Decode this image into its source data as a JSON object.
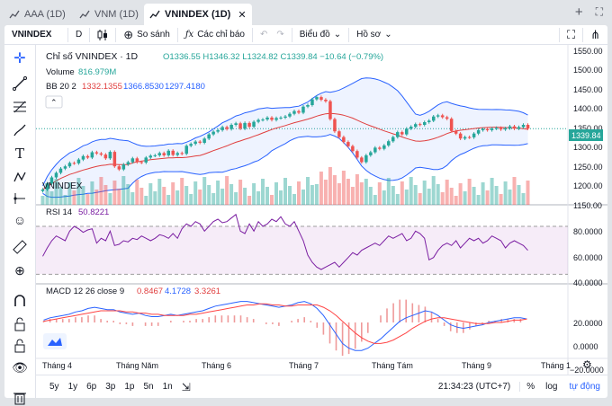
{
  "tabs": [
    {
      "label": "AAA (1D)",
      "active": false
    },
    {
      "label": "VNM (1D)",
      "active": false
    },
    {
      "label": "VNINDEX (1D)",
      "active": true
    }
  ],
  "window_controls": {
    "add": "+",
    "maximize": "⛶"
  },
  "toolbar": {
    "symbol": "VNINDEX",
    "interval": "D",
    "compare_label": "So sánh",
    "indicators_label": "Các chỉ báo",
    "chart_type_label": "Biểu đồ",
    "profile_label": "Hồ sơ"
  },
  "legend": {
    "title": "Chỉ số VNINDEX · 1D",
    "ohlc": "O1336.55 H1346.32 L1324.82 C1339.84 −10.64 (−0.79%)",
    "volume_label": "Volume",
    "volume_value": "816.979M",
    "bb_label": "BB 20 2",
    "bb_v1": "1332.1355",
    "bb_v2": "1366.8530",
    "bb_v3": "1297.4180",
    "rsi_label": "RSI 14",
    "rsi_value": "50.8221",
    "macd_label": "MACD 12 26 close 9",
    "macd_v1": "0.8467",
    "macd_v2": "4.1728",
    "macd_v3": "3.3261"
  },
  "watermark_label": "VNINDEX",
  "price_axis": [
    "1550.00",
    "1500.00",
    "1450.00",
    "1400.00",
    "1350.00",
    "1300.00",
    "1250.00",
    "1200.00",
    "1150.00"
  ],
  "last_price": "1339.84",
  "rsi_axis": [
    "80.0000",
    "60.0000",
    "40.0000"
  ],
  "macd_axis": [
    "20.0000",
    "0.0000",
    "−20.0000"
  ],
  "time_axis": [
    "Tháng 4",
    "Tháng Năm",
    "Tháng 6",
    "Tháng 7",
    "Tháng Tám",
    "Tháng 9",
    "Tháng 1"
  ],
  "bottom": {
    "ranges": [
      "5y",
      "1y",
      "6p",
      "3p",
      "1p",
      "5n",
      "1n"
    ],
    "clock": "21:34:23 (UTC+7)",
    "percent": "%",
    "log": "log",
    "auto": "tự động"
  },
  "colors": {
    "up": "#26a69a",
    "down": "#ef5350",
    "bb_mid": "#e03e3e",
    "bb_band": "#2962ff",
    "rsi": "#7b1fa2",
    "macd": "#2962ff",
    "signal": "#ff4444",
    "bg": "#ffffff"
  },
  "chart_data": [
    {
      "type": "candlestick",
      "ylim": [
        1140,
        1560
      ],
      "close": [
        1180,
        1196,
        1212,
        1224,
        1235,
        1241,
        1250,
        1249,
        1259,
        1268,
        1264,
        1278,
        1275,
        1272,
        1262,
        1279,
        1241,
        1233,
        1246,
        1252,
        1262,
        1252,
        1251,
        1264,
        1269,
        1270,
        1276,
        1270,
        1282,
        1271,
        1276,
        1274,
        1295,
        1300,
        1306,
        1303,
        1314,
        1325,
        1332,
        1336,
        1344,
        1339,
        1350,
        1354,
        1340,
        1355,
        1345,
        1358,
        1363,
        1364,
        1369,
        1363,
        1368,
        1369,
        1372,
        1379,
        1386,
        1382,
        1398,
        1402,
        1417,
        1423,
        1416,
        1412,
        1365,
        1333,
        1318,
        1305,
        1294,
        1281,
        1264,
        1252,
        1270,
        1278,
        1290,
        1287,
        1296,
        1307,
        1318,
        1331,
        1325,
        1340,
        1345,
        1352,
        1350,
        1357,
        1361,
        1372,
        1375,
        1370,
        1366,
        1334,
        1327,
        1314,
        1318,
        1317,
        1327,
        1336,
        1339,
        1336,
        1340,
        1342,
        1338,
        1341,
        1346,
        1340,
        1344,
        1350,
        1340
      ]
    },
    {
      "type": "bar",
      "series": "Volume"
    },
    {
      "type": "line",
      "name": "RSI 14",
      "ylim": [
        25,
        85
      ],
      "values": [
        45,
        52,
        58,
        62,
        60,
        58,
        66,
        70,
        68,
        65,
        67,
        68,
        56,
        60,
        58,
        66,
        54,
        55,
        58,
        57,
        60,
        59,
        62,
        60,
        58,
        60,
        63,
        62,
        60,
        64,
        60,
        68,
        72,
        70,
        74,
        72,
        66,
        70,
        74,
        76,
        73,
        74,
        77,
        80,
        66,
        64,
        72,
        66,
        74,
        70,
        72,
        76,
        74,
        78,
        72,
        70,
        74,
        66,
        58,
        46,
        40,
        36,
        34,
        36,
        38,
        40,
        36,
        40,
        44,
        48,
        46,
        50,
        52,
        54,
        56,
        54,
        58,
        62,
        60,
        62,
        64,
        58,
        60,
        66,
        64,
        60,
        42,
        44,
        50,
        54,
        56,
        54,
        58,
        52,
        56,
        60,
        58,
        60,
        56,
        58,
        62,
        60,
        58,
        52,
        56,
        58,
        56,
        54,
        50
      ]
    },
    {
      "type": "line",
      "name": "MACD",
      "ylim": [
        -30,
        30
      ],
      "macd": [
        2,
        4,
        5,
        6,
        7,
        9,
        10,
        12,
        13,
        12,
        11,
        11,
        9,
        8,
        7,
        8,
        6,
        5,
        5,
        6,
        7,
        6,
        7,
        8,
        9,
        10,
        12,
        14,
        15,
        16,
        17,
        18,
        18,
        17,
        16,
        15,
        14,
        13,
        14,
        15,
        17,
        18,
        16,
        12,
        6,
        -2,
        -10,
        -18,
        -22,
        -24,
        -24,
        -22,
        -18,
        -14,
        -9,
        -4,
        1,
        4,
        6,
        8,
        10,
        9,
        6,
        2,
        -2,
        -4,
        -5,
        -4,
        -3,
        -2,
        0,
        1,
        2,
        3,
        4,
        4,
        3
      ],
      "signal": [
        1,
        2,
        3,
        4,
        5,
        6,
        7,
        8,
        9,
        10,
        10,
        10,
        10,
        9,
        9,
        8,
        8,
        7,
        7,
        6,
        6,
        6,
        6,
        7,
        7,
        8,
        9,
        10,
        11,
        12,
        13,
        14,
        15,
        15,
        16,
        16,
        15,
        15,
        14,
        14,
        15,
        15,
        15,
        15,
        13,
        10,
        6,
        1,
        -4,
        -9,
        -13,
        -16,
        -18,
        -18,
        -17,
        -15,
        -12,
        -9,
        -5,
        -2,
        1,
        3,
        4,
        4,
        3,
        2,
        1,
        0,
        -1,
        -1,
        -1,
        0,
        0,
        1,
        2,
        2,
        3
      ]
    }
  ]
}
